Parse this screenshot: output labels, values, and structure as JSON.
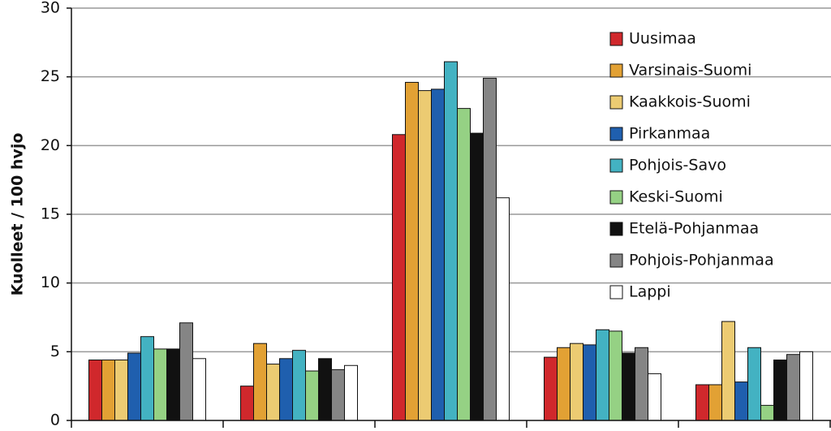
{
  "chart_data": {
    "type": "bar",
    "ylabel": "Kuolleet / 100 hvjo",
    "categories": [
      null,
      null,
      null,
      null,
      null
    ],
    "series": [
      {
        "name": "Uusimaa",
        "color": "#d0282c",
        "values": [
          4.4,
          2.5,
          20.8,
          4.6,
          2.6
        ]
      },
      {
        "name": "Varsinais-Suomi",
        "color": "#e2a134",
        "values": [
          4.4,
          5.6,
          24.6,
          5.3,
          2.6
        ]
      },
      {
        "name": "Kaakkois-Suomi",
        "color": "#eccb72",
        "values": [
          4.4,
          4.1,
          24.0,
          5.6,
          7.2
        ]
      },
      {
        "name": "Pirkanmaa",
        "color": "#1f5fae",
        "values": [
          4.9,
          4.5,
          24.1,
          5.5,
          2.8
        ]
      },
      {
        "name": "Pohjois-Savo",
        "color": "#43b2c2",
        "values": [
          6.1,
          5.1,
          26.1,
          6.6,
          5.3
        ]
      },
      {
        "name": "Keski-Suomi",
        "color": "#95d184",
        "values": [
          5.2,
          3.6,
          22.7,
          6.5,
          1.1
        ]
      },
      {
        "name": "Etelä-Pohjanmaa",
        "color": "#111111",
        "values": [
          5.2,
          4.5,
          20.9,
          4.9,
          4.4
        ]
      },
      {
        "name": "Pohjois-Pohjanmaa",
        "color": "#858585",
        "values": [
          7.1,
          3.7,
          24.9,
          5.3,
          4.8
        ]
      },
      {
        "name": "Lappi",
        "color": "#ffffff",
        "values": [
          4.5,
          4.0,
          16.2,
          3.4,
          5.0
        ]
      }
    ],
    "ylim": [
      0,
      30
    ],
    "yticks": [
      0,
      5,
      10,
      15,
      20,
      25,
      30
    ],
    "grid": true,
    "legend": "upper right"
  }
}
